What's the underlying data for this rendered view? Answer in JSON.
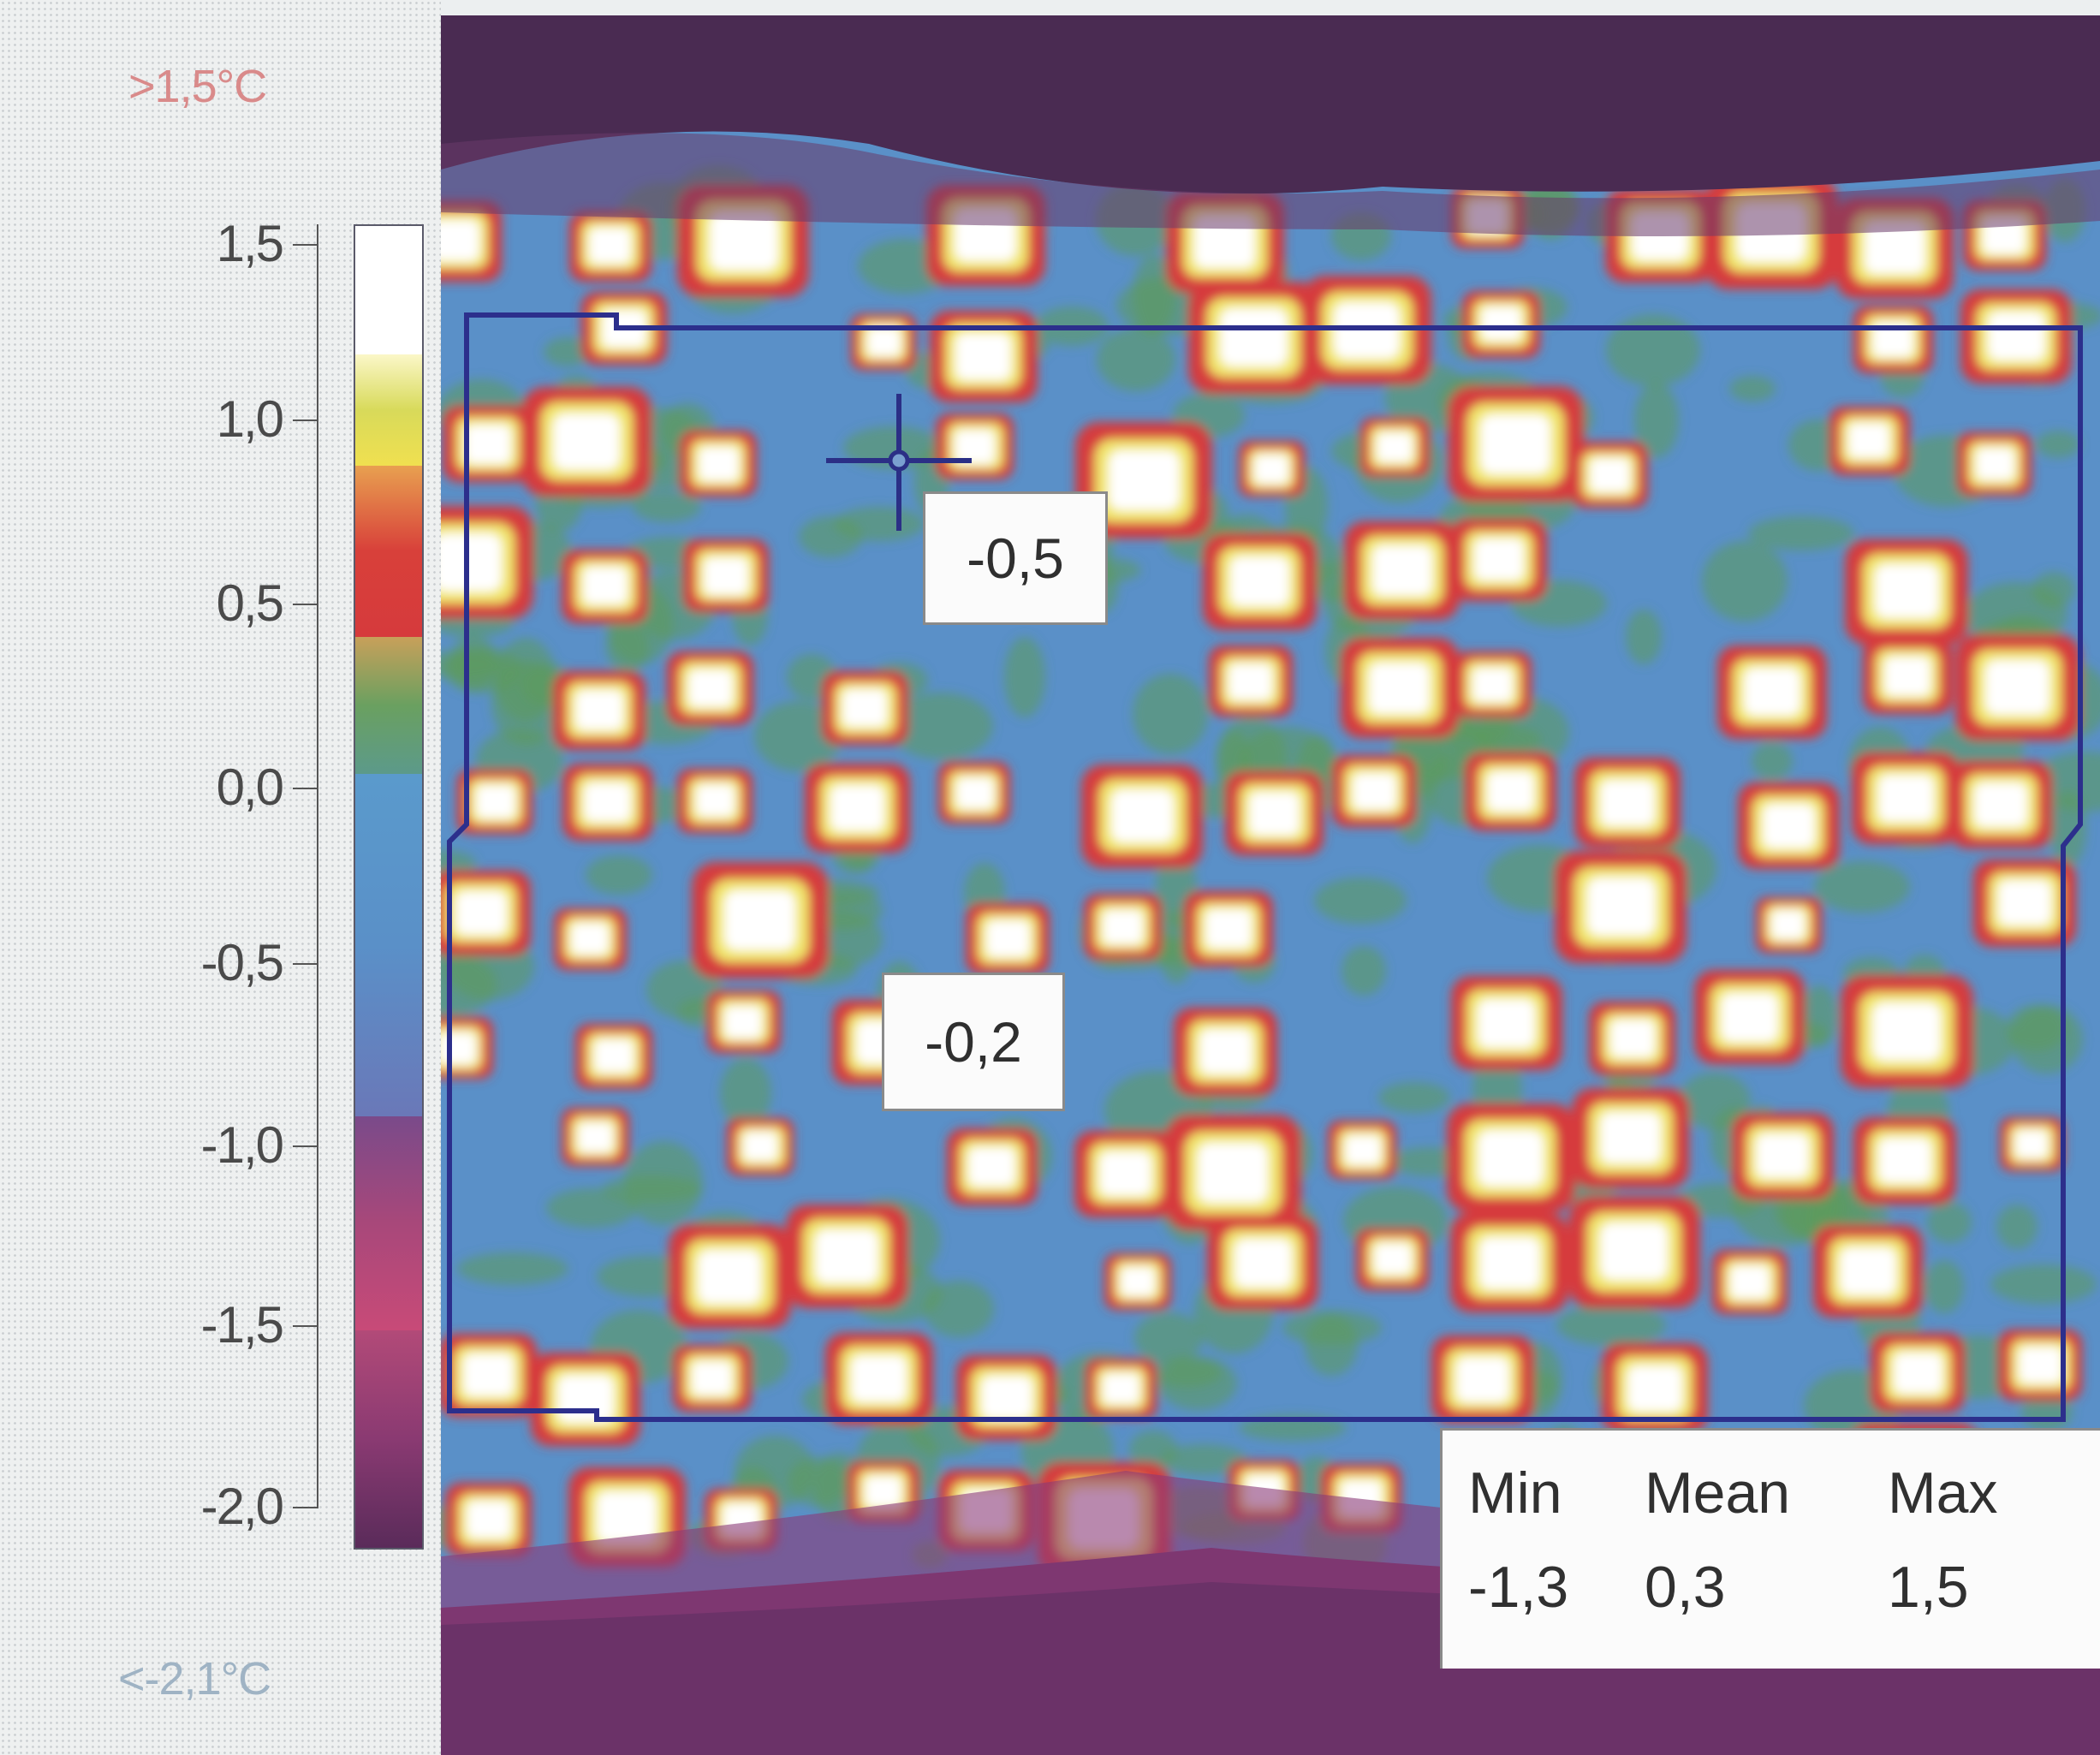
{
  "scale": {
    "max_label": ">1,5°C",
    "min_label": "<-2,1°C",
    "ticks": [
      "1,5",
      "1,0",
      "0,5",
      "0,0",
      "-0,5",
      "-1,0",
      "-1,5",
      "-2,0"
    ],
    "colors": {
      "hot": "#ffffff",
      "warm": "#f1e66a",
      "mid": "#d63a3c",
      "neutral": "#5c9a5a",
      "cool": "#5a97cc",
      "cold": "#8a3a7a",
      "coldest": "#4a2b52"
    }
  },
  "measurements": {
    "point_1": "-0,5",
    "point_2": "-0,2"
  },
  "stats": {
    "min_label": "Min",
    "mean_label": "Mean",
    "max_label": "Max",
    "min_value": "-1,3",
    "mean_value": "0,3",
    "max_value": "1,5"
  }
}
